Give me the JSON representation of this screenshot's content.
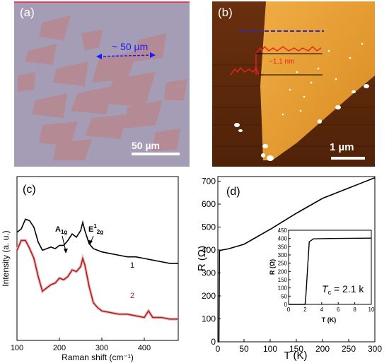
{
  "panel_a": {
    "label": "(a)",
    "annotation": "~ 50 µm",
    "scalebar": "50 µm",
    "colors": {
      "substrate": "#a49bb4",
      "flake": "#b8868c",
      "arrow": "#1a1aff",
      "border": "#e24060"
    }
  },
  "panel_b": {
    "label": "(b)",
    "height_label": "~1.1 nm",
    "scalebar": "1 µm",
    "colors": {
      "dark": "#5c2a0e",
      "flake": "#e8a035",
      "line": "#2a2acc",
      "profile": "#e82020"
    }
  },
  "panel_c": {
    "label": "(c)",
    "peak1_main": "A",
    "peak1_sub": "1g",
    "peak2_main": "E",
    "peak2_sup": "1",
    "peak2_sub": "2g",
    "curve1_label": "1",
    "curve2_label": "2"
  },
  "panel_d": {
    "label": "(d)",
    "inset_tc_label": "T",
    "inset_tc_sub": "c",
    "inset_tc_value": " = 2.1 k",
    "inset_ylabel": "R (Ω)",
    "inset_xlabel": "T (K)"
  },
  "chart_data": [
    {
      "type": "line",
      "panel": "c",
      "xlabel": "Raman shift (cm⁻¹)",
      "ylabel": "Intensity (a. u.)",
      "xlim": [
        100,
        480
      ],
      "xticks": [
        "100",
        "200",
        "300",
        "400"
      ],
      "series": [
        {
          "name": "1",
          "color": "#000000",
          "x": [
            100,
            110,
            120,
            130,
            140,
            150,
            160,
            170,
            180,
            190,
            200,
            210,
            220,
            230,
            240,
            250,
            255,
            260,
            270,
            280,
            290,
            300,
            320,
            340,
            360,
            380,
            400,
            420,
            440,
            460,
            480
          ],
          "y": [
            0.66,
            0.68,
            0.74,
            0.73,
            0.69,
            0.6,
            0.55,
            0.56,
            0.57,
            0.56,
            0.58,
            0.58,
            0.61,
            0.65,
            0.63,
            0.67,
            0.72,
            0.67,
            0.59,
            0.56,
            0.55,
            0.54,
            0.53,
            0.52,
            0.51,
            0.51,
            0.5,
            0.49,
            0.48,
            0.47,
            0.47
          ]
        },
        {
          "name": "2",
          "color": "#9c2a1a",
          "x": [
            100,
            110,
            120,
            130,
            140,
            150,
            160,
            170,
            180,
            190,
            200,
            210,
            220,
            230,
            240,
            250,
            255,
            260,
            270,
            280,
            290,
            300,
            320,
            340,
            360,
            380,
            400,
            410,
            420,
            440,
            460,
            480
          ],
          "y": [
            0.55,
            0.61,
            0.61,
            0.56,
            0.5,
            0.39,
            0.3,
            0.32,
            0.34,
            0.35,
            0.38,
            0.37,
            0.39,
            0.43,
            0.42,
            0.45,
            0.5,
            0.46,
            0.33,
            0.23,
            0.2,
            0.18,
            0.17,
            0.16,
            0.16,
            0.15,
            0.14,
            0.18,
            0.14,
            0.14,
            0.13,
            0.13
          ]
        }
      ]
    },
    {
      "type": "line",
      "panel": "d",
      "xlabel": "T (K)",
      "ylabel": "R (Ω)",
      "xlim": [
        0,
        300
      ],
      "ylim": [
        0,
        720
      ],
      "xticks": [
        0,
        50,
        100,
        150,
        200,
        250,
        300
      ],
      "yticks": [
        0,
        100,
        200,
        300,
        400,
        500,
        600,
        700
      ],
      "series": [
        {
          "name": "",
          "color": "#000000",
          "x": [
            0,
            2,
            3,
            4,
            8,
            20,
            50,
            100,
            150,
            200,
            250,
            300
          ],
          "y": [
            0,
            0,
            395,
            397,
            400,
            405,
            425,
            490,
            560,
            625,
            670,
            715
          ]
        }
      ]
    },
    {
      "type": "line",
      "panel": "d-inset",
      "xlabel": "T (K)",
      "ylabel": "R (Ω)",
      "xlim": [
        0,
        10
      ],
      "ylim": [
        0,
        450
      ],
      "xticks": [
        0,
        2,
        4,
        6,
        8,
        10
      ],
      "yticks": [
        0,
        50,
        100,
        150,
        200,
        250,
        300,
        350,
        400,
        450
      ],
      "series": [
        {
          "name": "",
          "color": "#000000",
          "x": [
            0,
            2,
            2.1,
            2.5,
            3,
            5,
            10
          ],
          "y": [
            0,
            0,
            60,
            380,
            398,
            400,
            402
          ]
        }
      ]
    }
  ]
}
